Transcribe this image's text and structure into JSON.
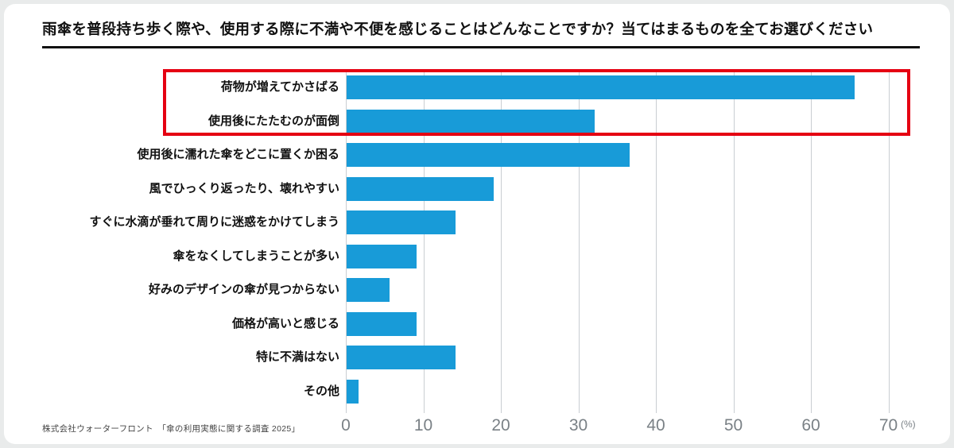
{
  "title": "雨傘を普段持ち歩く際や、使用する際に不満や不便を感じることはどんなことですか？当てはまるものを全てお選びください",
  "source": "株式会社ウォーターフロント　「傘の利用実態に関する調査 2025」",
  "colors": {
    "bar": "#189BD8",
    "highlight": "#E50012",
    "gridline": "#C9CED2",
    "axis_text": "#7A8186",
    "title_text": "#111111"
  },
  "chart_data": {
    "type": "bar",
    "orientation": "horizontal",
    "title": "雨傘を普段持ち歩く際や、使用する際に不満や不便を感じることはどんなことですか？当てはまるものを全てお選びください",
    "categories": [
      "荷物が増えてかさばる",
      "使用後にたたむのが面倒",
      "使用後に濡れた傘をどこに置くか困る",
      "風でひっくり返ったり、壊れやすい",
      "すぐに水滴が垂れて周りに迷惑をかけてしまう",
      "傘をなくしてしまうことが多い",
      "好みのデザインの傘が見つからない",
      "価格が高いと感じる",
      "特に不満はない",
      "その他"
    ],
    "values": [
      65.5,
      32,
      36.5,
      19,
      14,
      9,
      5.5,
      9,
      14,
      1.5
    ],
    "unit": "%",
    "xlim": [
      0,
      73
    ],
    "xticks": [
      0,
      10,
      20,
      30,
      40,
      50,
      60,
      70
    ],
    "xtick_unit_label": "(%)",
    "grid": true,
    "legend": null,
    "highlighted_categories": [
      "荷物が増えてかさばる",
      "使用後にたたむのが面倒"
    ],
    "highlight_style": "red-outline-box"
  }
}
